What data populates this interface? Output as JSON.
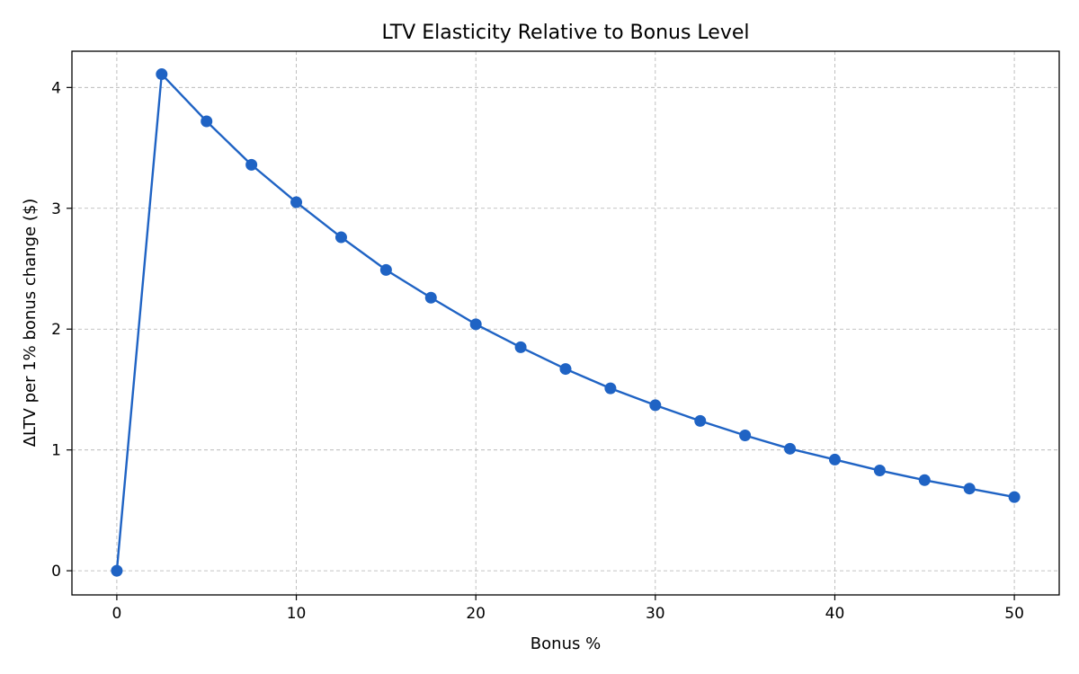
{
  "chart_data": {
    "type": "line",
    "title": "LTV Elasticity Relative to Bonus Level",
    "xlabel": "Bonus %",
    "ylabel": "ΔLTV per 1% bonus change ($)",
    "xlim": [
      -2.5,
      52.5
    ],
    "ylim": [
      -0.2,
      4.3
    ],
    "xticks": [
      0,
      10,
      20,
      30,
      40,
      50
    ],
    "xtick_labels": [
      "0",
      "10",
      "20",
      "30",
      "40",
      "50"
    ],
    "yticks": [
      0,
      1,
      2,
      3,
      4
    ],
    "ytick_labels": [
      "0",
      "1",
      "2",
      "3",
      "4"
    ],
    "grid": true,
    "color": "#1f63c4",
    "series": [
      {
        "x": [
          0,
          2.5,
          5,
          7.5,
          10,
          12.5,
          15,
          17.5,
          20,
          22.5,
          25,
          27.5,
          30,
          32.5,
          35,
          37.5,
          40,
          42.5,
          45,
          47.5,
          50
        ],
        "y": [
          0,
          4.11,
          3.72,
          3.36,
          3.05,
          2.76,
          2.49,
          2.26,
          2.04,
          1.85,
          1.67,
          1.51,
          1.37,
          1.24,
          1.12,
          1.01,
          0.92,
          0.83,
          0.75,
          0.68,
          0.61
        ]
      }
    ]
  }
}
